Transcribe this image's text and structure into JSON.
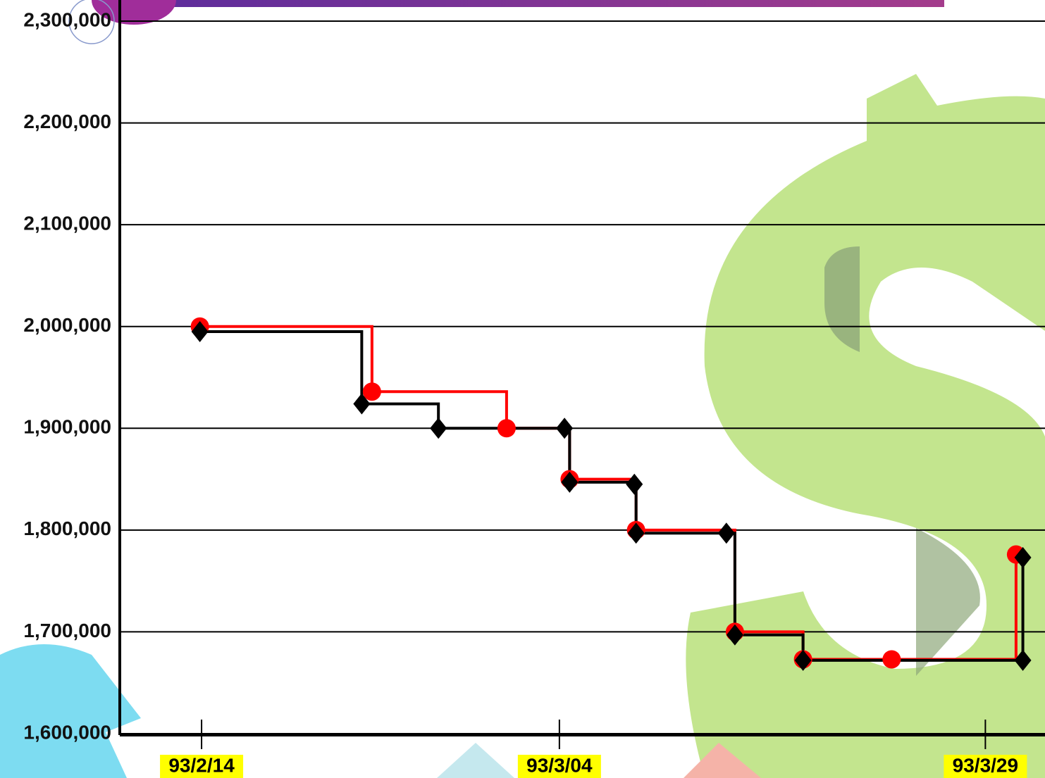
{
  "chart_data": {
    "type": "step",
    "ylim": [
      1600000,
      2300000
    ],
    "yticks": [
      {
        "value": 1600000,
        "label": "1,600,000"
      },
      {
        "value": 1700000,
        "label": "1,700,000"
      },
      {
        "value": 1800000,
        "label": "1,800,000"
      },
      {
        "value": 1900000,
        "label": "1,900,000"
      },
      {
        "value": 2000000,
        "label": "2,000,000"
      },
      {
        "value": 2100000,
        "label": "2,100,000"
      },
      {
        "value": 2200000,
        "label": "2,200,000"
      },
      {
        "value": 2300000,
        "label": "2,300,000"
      }
    ],
    "xlim": [
      9.2,
      63.5
    ],
    "xticks": [
      {
        "value": 14,
        "label": "93/2/14"
      },
      {
        "value": 35,
        "label": "93/3/04"
      },
      {
        "value": 60,
        "label": "93/3/29"
      }
    ],
    "grid": true,
    "series": [
      {
        "color": "#ff0000",
        "marker": "circle",
        "x": [
          13.9,
          24.0,
          31.9,
          35.6,
          39.5,
          45.3,
          49.3,
          54.5,
          61.8
        ],
        "values": [
          2000000,
          1936000,
          1900000,
          1850000,
          1800000,
          1700000,
          1673000,
          1673000,
          1776000
        ]
      },
      {
        "color": "#000000",
        "marker": "diamond",
        "x": [
          13.9,
          23.4,
          27.9,
          35.3,
          35.6,
          39.4,
          39.5,
          44.8,
          45.3,
          49.3,
          62.2,
          62.2
        ],
        "values": [
          1995000,
          1924000,
          1900000,
          1900000,
          1847000,
          1845000,
          1797000,
          1797000,
          1697000,
          1672000,
          1672000,
          1773000
        ]
      }
    ]
  }
}
